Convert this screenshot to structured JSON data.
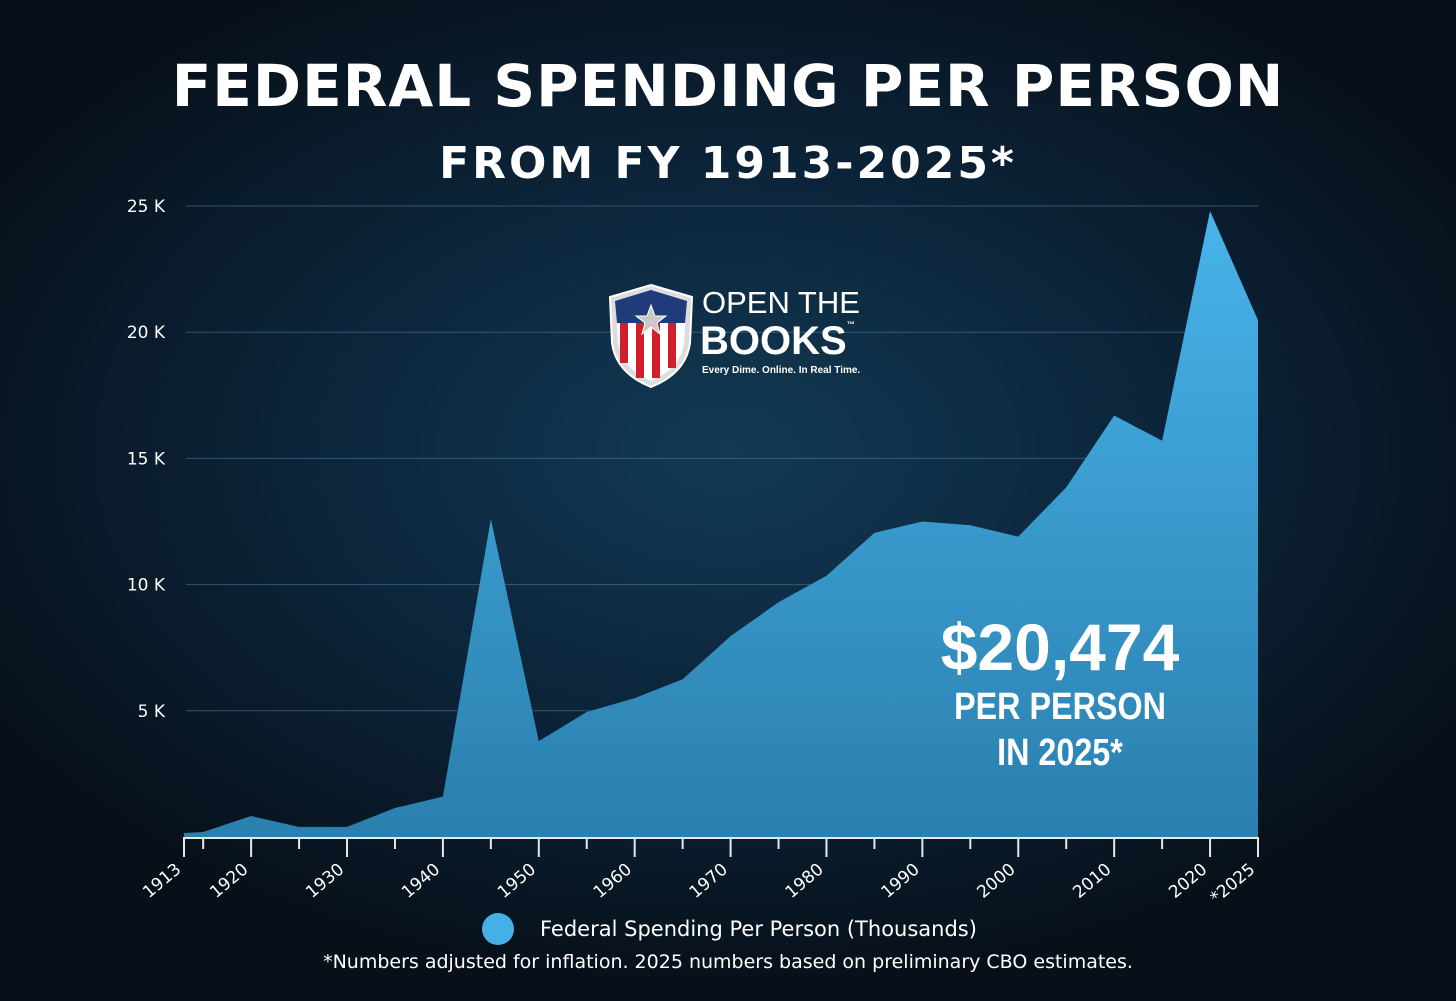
{
  "chart_data": {
    "type": "area",
    "title": "FEDERAL SPENDING PER PERSON",
    "subtitle": "FROM FY 1913-2025*",
    "x": [
      1913,
      1915,
      1920,
      1925,
      1930,
      1935,
      1940,
      1945,
      1950,
      1955,
      1960,
      1965,
      1970,
      1975,
      1980,
      1985,
      1990,
      1995,
      2000,
      2005,
      2010,
      2015,
      2020,
      2025
    ],
    "series": [
      {
        "name": "Federal Spending Per Person (Thousands)",
        "values": [
          0.16,
          0.2,
          0.83,
          0.4,
          0.4,
          1.15,
          1.6,
          12.6,
          3.8,
          4.95,
          5.5,
          6.25,
          7.96,
          9.3,
          10.35,
          12.05,
          12.5,
          12.35,
          11.9,
          13.85,
          16.7,
          15.7,
          24.8,
          20.474
        ],
        "color": "#45b0e6"
      }
    ],
    "ylim": [
      0,
      25
    ],
    "yticks": [
      {
        "v": 5,
        "label": "5 K"
      },
      {
        "v": 10,
        "label": "10 K"
      },
      {
        "v": 15,
        "label": "15 K"
      },
      {
        "v": 20,
        "label": "20 K"
      },
      {
        "v": 25,
        "label": "25 K"
      }
    ],
    "xticks": [
      {
        "v": 1913,
        "label": "1913"
      },
      {
        "v": 1920,
        "label": "1920"
      },
      {
        "v": 1930,
        "label": "1930"
      },
      {
        "v": 1940,
        "label": "1940"
      },
      {
        "v": 1950,
        "label": "1950"
      },
      {
        "v": 1960,
        "label": "1960"
      },
      {
        "v": 1970,
        "label": "1970"
      },
      {
        "v": 1980,
        "label": "1980"
      },
      {
        "v": 1990,
        "label": "1990"
      },
      {
        "v": 2000,
        "label": "2000"
      },
      {
        "v": 2010,
        "label": "2010"
      },
      {
        "v": 2020,
        "label": "2020"
      },
      {
        "v": 2025,
        "label": "*2025"
      }
    ],
    "grid": true,
    "legend": "bottom",
    "annotation": {
      "value": "$20,474",
      "line1": "PER PERSON",
      "line2": "IN 2025*"
    },
    "footnote": "*Numbers adjusted for inflation. 2025 numbers based on preliminary CBO estimates."
  },
  "logo": {
    "line1": "OPEN THE",
    "line2": "BOOKS",
    "tm": "™",
    "tagline": "Every Dime. Online. In Real Time."
  }
}
